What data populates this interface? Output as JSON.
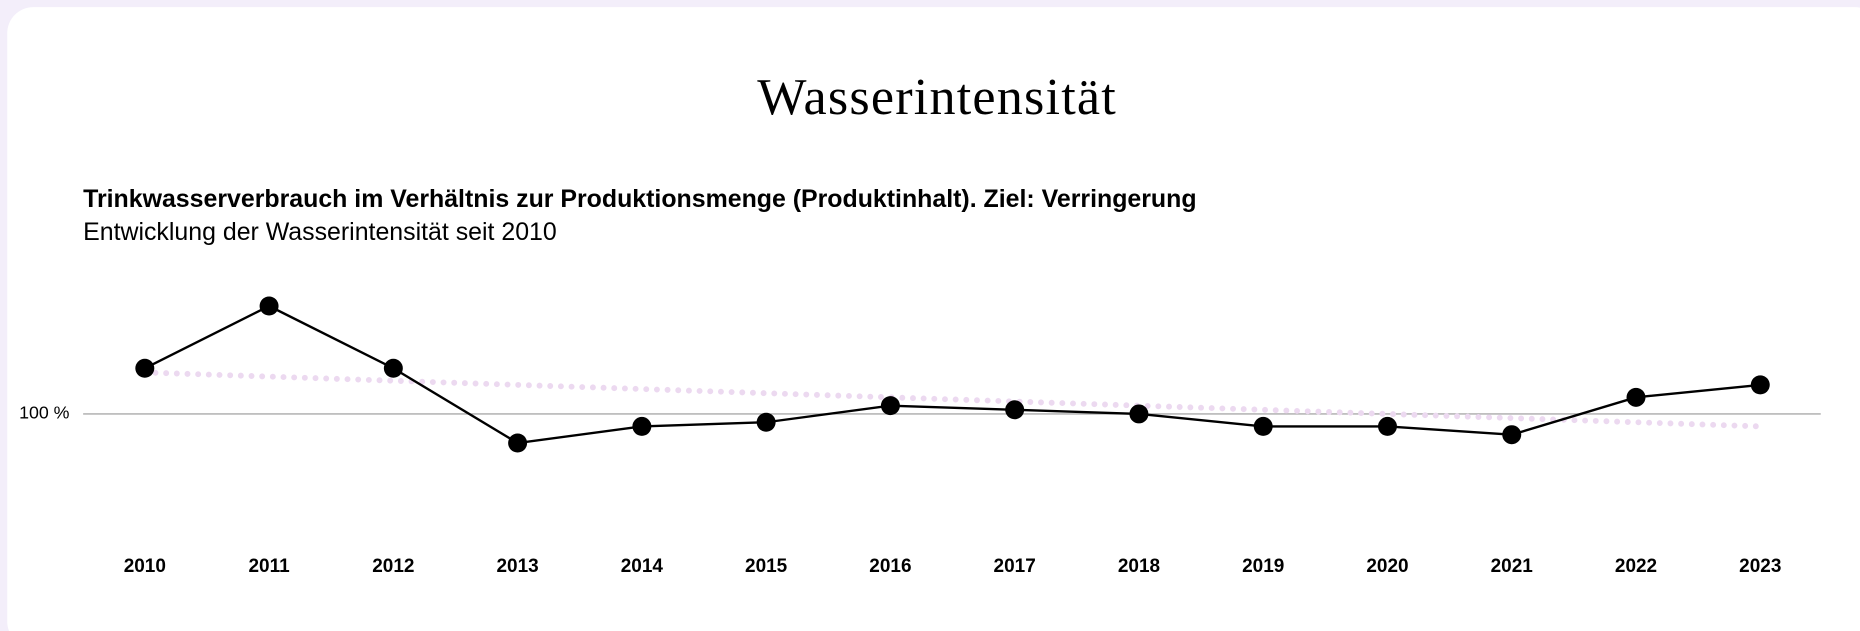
{
  "chart_data": {
    "type": "line",
    "title": "Wasserintensität",
    "subtitle": "Trinkwasserverbrauch im Verhältnis zur Produktionsmenge (Produktinhalt). Ziel: Verringerung",
    "description": "Entwicklung der Wasserintensität seit 2010",
    "categories": [
      "2010",
      "2011",
      "2012",
      "2013",
      "2014",
      "2015",
      "2016",
      "2017",
      "2018",
      "2019",
      "2020",
      "2021",
      "2022",
      "2023"
    ],
    "series": [
      {
        "color": "#000000",
        "values": [
          111,
          126,
          111,
          93,
          97,
          98,
          102,
          101,
          100,
          97,
          97,
          95,
          104,
          107
        ]
      },
      {
        "color": "#ecd9f0",
        "style": "dotted",
        "values": [
          110,
          109,
          108,
          107,
          106,
          105,
          104,
          103,
          102,
          101,
          100,
          99,
          98,
          97
        ]
      }
    ],
    "ylim": [
      75,
      130
    ],
    "yticks": [
      {
        "value": 100,
        "label": "100 %"
      }
    ],
    "grid": true
  }
}
